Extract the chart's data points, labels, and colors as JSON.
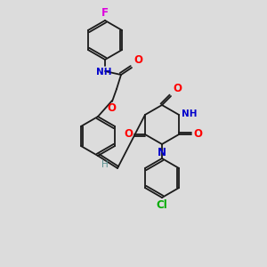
{
  "background_color": "#dcdcdc",
  "bond_color": "#1a1a1a",
  "atom_colors": {
    "O": "#ff0000",
    "N": "#0000cc",
    "F": "#dd00dd",
    "Cl": "#00aa00",
    "C": "#1a1a1a",
    "H": "#5a9090"
  },
  "font_size": 7.5,
  "lw": 1.3,
  "figsize": [
    3.0,
    3.0
  ],
  "dpi": 100
}
